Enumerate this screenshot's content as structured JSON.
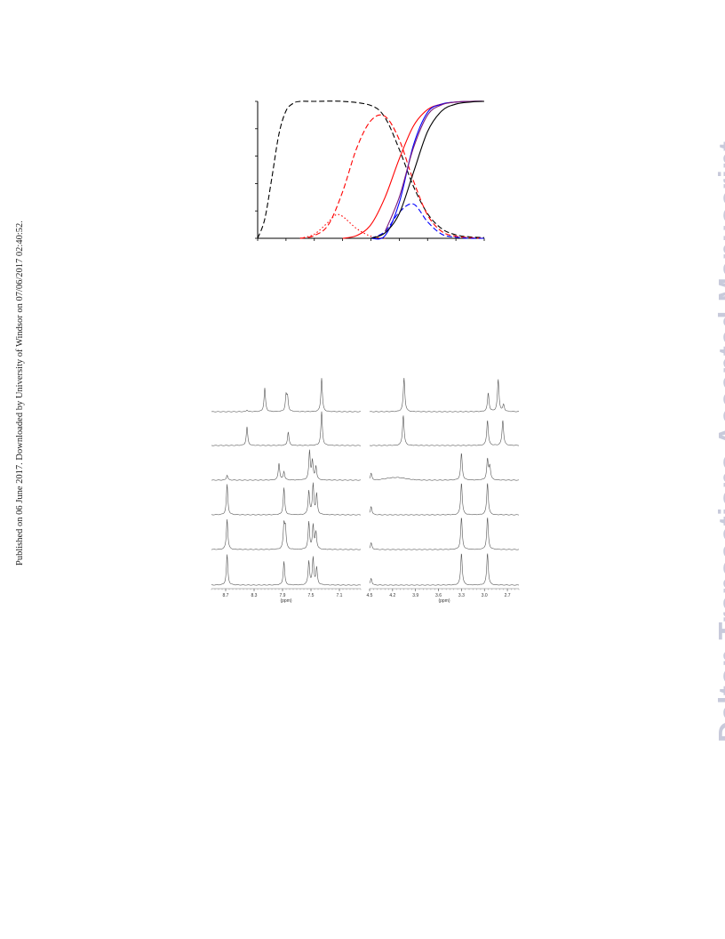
{
  "header": {
    "publication_note": "Published on 06 June 2017. Downloaded by University of Windsor on 07/06/2017 02:40:52.",
    "watermark": "Dalton Transactions Accepted Manuscript"
  },
  "chart_data": {
    "type": "line",
    "title": "",
    "xlabel": "",
    "ylabel": "",
    "xlim": [
      0,
      8
    ],
    "ylim": [
      0,
      1
    ],
    "grid": false,
    "x_ticks": 8,
    "y_ticks": 5,
    "series": [
      {
        "color": "#000000",
        "style": "dashed",
        "x": [
          0,
          0.25,
          0.5,
          0.75,
          1.0,
          1.25,
          1.5,
          2,
          3,
          4,
          4.5,
          5,
          5.5,
          6,
          6.5,
          7,
          7.5,
          8
        ],
        "values": [
          0.0,
          0.14,
          0.44,
          0.76,
          0.93,
          0.985,
          1.0,
          1.0,
          1.0,
          0.97,
          0.88,
          0.65,
          0.38,
          0.18,
          0.07,
          0.025,
          0.01,
          0.005
        ]
      },
      {
        "color": "#ff0000",
        "style": "dashed",
        "x": [
          1.5,
          2,
          2.5,
          3,
          3.5,
          4,
          4.5,
          5,
          5.5,
          6,
          6.5,
          7,
          7.5,
          8
        ],
        "values": [
          0.0,
          0.02,
          0.1,
          0.34,
          0.66,
          0.86,
          0.89,
          0.72,
          0.42,
          0.17,
          0.05,
          0.015,
          0.005,
          0.0
        ]
      },
      {
        "color": "#ff0000",
        "style": "dotted",
        "x": [
          1.5,
          2,
          2.5,
          2.75,
          3,
          3.5,
          4,
          4.5
        ],
        "values": [
          0.0,
          0.03,
          0.12,
          0.17,
          0.16,
          0.07,
          0.015,
          0.0
        ]
      },
      {
        "color": "#0000ff",
        "style": "dashed",
        "x": [
          4,
          4.5,
          5,
          5.5,
          6,
          6.5,
          7,
          7.5,
          8
        ],
        "values": [
          0.0,
          0.05,
          0.19,
          0.25,
          0.12,
          0.03,
          0.008,
          0.0,
          0.0
        ]
      },
      {
        "color": "#ff0000",
        "style": "solid",
        "x": [
          3,
          3.5,
          4,
          4.5,
          5,
          5.5,
          6,
          6.5,
          7,
          7.5,
          8
        ],
        "values": [
          0.0,
          0.02,
          0.1,
          0.3,
          0.58,
          0.82,
          0.94,
          0.98,
          0.995,
          1.0,
          1.0
        ]
      },
      {
        "color": "#0000ff",
        "style": "solid",
        "x": [
          4,
          4.5,
          5,
          5.5,
          6,
          6.5,
          7,
          7.5,
          8
        ],
        "values": [
          0.0,
          0.02,
          0.26,
          0.68,
          0.92,
          0.98,
          0.995,
          1.0,
          1.0
        ]
      },
      {
        "color": "#7a1a7a",
        "style": "solid",
        "x": [
          4.5,
          5,
          5.5,
          6,
          6.5,
          7,
          7.5,
          8
        ],
        "values": [
          0.05,
          0.3,
          0.66,
          0.9,
          0.975,
          0.995,
          1.0,
          1.0
        ]
      },
      {
        "color": "#000000",
        "style": "solid",
        "x": [
          4,
          4.5,
          5,
          5.5,
          6,
          6.5,
          7,
          7.5,
          8
        ],
        "values": [
          0.0,
          0.04,
          0.18,
          0.48,
          0.78,
          0.93,
          0.98,
          0.995,
          1.0
        ]
      }
    ]
  },
  "nmr_figure": {
    "left_panel": {
      "axis_label": "(ppm)",
      "tick_labels": [
        "8.7",
        "8.3",
        "7.9",
        "7.5",
        "7.1"
      ],
      "tick_values": [
        8.7,
        8.3,
        7.9,
        7.5,
        7.1
      ],
      "range": [
        8.9,
        6.8
      ],
      "spectra": [
        {
          "peaks": [
            [
              8.15,
              0.7
            ],
            [
              7.85,
              0.45
            ],
            [
              7.83,
              0.4
            ],
            [
              7.35,
              1.0
            ],
            [
              8.4,
              0.05
            ]
          ]
        },
        {
          "peaks": [
            [
              8.4,
              0.55
            ],
            [
              7.82,
              0.4
            ],
            [
              7.35,
              1.0
            ]
          ]
        },
        {
          "peaks": [
            [
              8.68,
              0.15
            ],
            [
              7.95,
              0.5
            ],
            [
              7.88,
              0.25
            ],
            [
              7.52,
              0.85
            ],
            [
              7.48,
              0.55
            ],
            [
              7.43,
              0.4
            ]
          ]
        },
        {
          "peaks": [
            [
              8.68,
              0.9
            ],
            [
              7.88,
              0.8
            ],
            [
              7.53,
              0.7
            ],
            [
              7.47,
              0.9
            ],
            [
              7.42,
              0.6
            ]
          ]
        },
        {
          "peaks": [
            [
              8.68,
              0.9
            ],
            [
              7.88,
              0.7
            ],
            [
              7.86,
              0.6
            ],
            [
              7.53,
              0.8
            ],
            [
              7.47,
              0.7
            ],
            [
              7.43,
              0.5
            ]
          ]
        },
        {
          "peaks": [
            [
              8.68,
              0.9
            ],
            [
              7.88,
              0.7
            ],
            [
              7.53,
              0.7
            ],
            [
              7.47,
              0.8
            ],
            [
              7.42,
              0.5
            ]
          ]
        }
      ]
    },
    "right_panel": {
      "axis_label": "(ppm)",
      "tick_labels": [
        "4.5",
        "4.2",
        "3.9",
        "3.6",
        "3.3",
        "3.0",
        "2.7"
      ],
      "tick_values": [
        4.5,
        4.2,
        3.9,
        3.6,
        3.3,
        3.0,
        2.7
      ],
      "range": [
        4.5,
        2.55
      ],
      "spectra": [
        {
          "peaks": [
            [
              4.05,
              1.0
            ],
            [
              2.95,
              0.55
            ],
            [
              2.82,
              0.95
            ],
            [
              2.75,
              0.2
            ]
          ]
        },
        {
          "peaks": [
            [
              4.06,
              0.9
            ],
            [
              2.96,
              0.75
            ],
            [
              2.76,
              0.75
            ]
          ]
        },
        {
          "peaks": [
            [
              4.48,
              0.2
            ],
            [
              3.3,
              0.8
            ],
            [
              2.96,
              0.6
            ],
            [
              2.93,
              0.4
            ]
          ],
          "hump": [
            4.15,
            0.08
          ]
        },
        {
          "peaks": [
            [
              4.48,
              0.25
            ],
            [
              3.3,
              0.95
            ],
            [
              2.96,
              0.95
            ]
          ]
        },
        {
          "peaks": [
            [
              4.48,
              0.2
            ],
            [
              3.3,
              0.95
            ],
            [
              2.96,
              0.95
            ]
          ]
        },
        {
          "peaks": [
            [
              4.48,
              0.2
            ],
            [
              3.3,
              0.95
            ],
            [
              2.96,
              0.95
            ]
          ]
        }
      ]
    }
  }
}
